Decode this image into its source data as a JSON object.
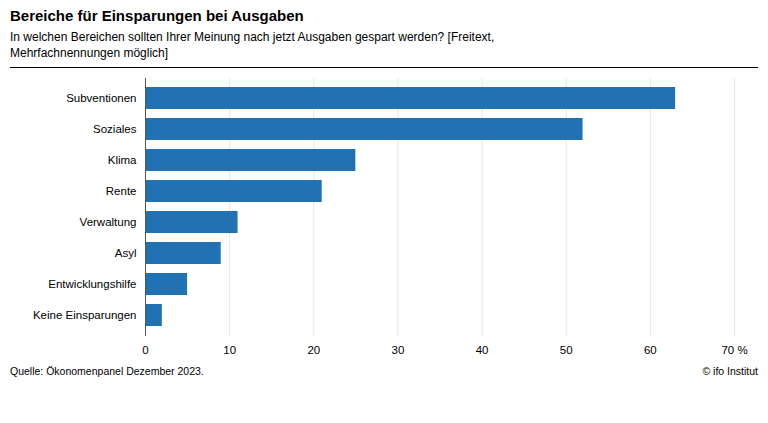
{
  "chart_data": {
    "type": "bar",
    "orientation": "horizontal",
    "title": "Bereiche für Einsparungen bei Ausgaben",
    "subtitle": "In welchen Bereichen sollten Ihrer Meinung nach jetzt Ausgaben gespart werden? [Freitext,\nMehrfachnennungen möglich]",
    "categories": [
      "Keine Einsparungen",
      "Entwicklungshilfe",
      "Asyl",
      "Verwaltung",
      "Rente",
      "Klima",
      "Soziales",
      "Subventionen"
    ],
    "values": [
      2,
      5,
      9,
      11,
      21,
      25,
      52,
      63
    ],
    "color": "#2271B3",
    "xlim": [
      0,
      70
    ],
    "xticks": [
      0,
      10,
      20,
      30,
      40,
      50,
      60,
      {
        "value": 70,
        "label": "70 %"
      }
    ],
    "grid": true,
    "source": "Quelle: Ökonomenpanel Dezember 2023.",
    "copyright": "© ifo Institut"
  }
}
